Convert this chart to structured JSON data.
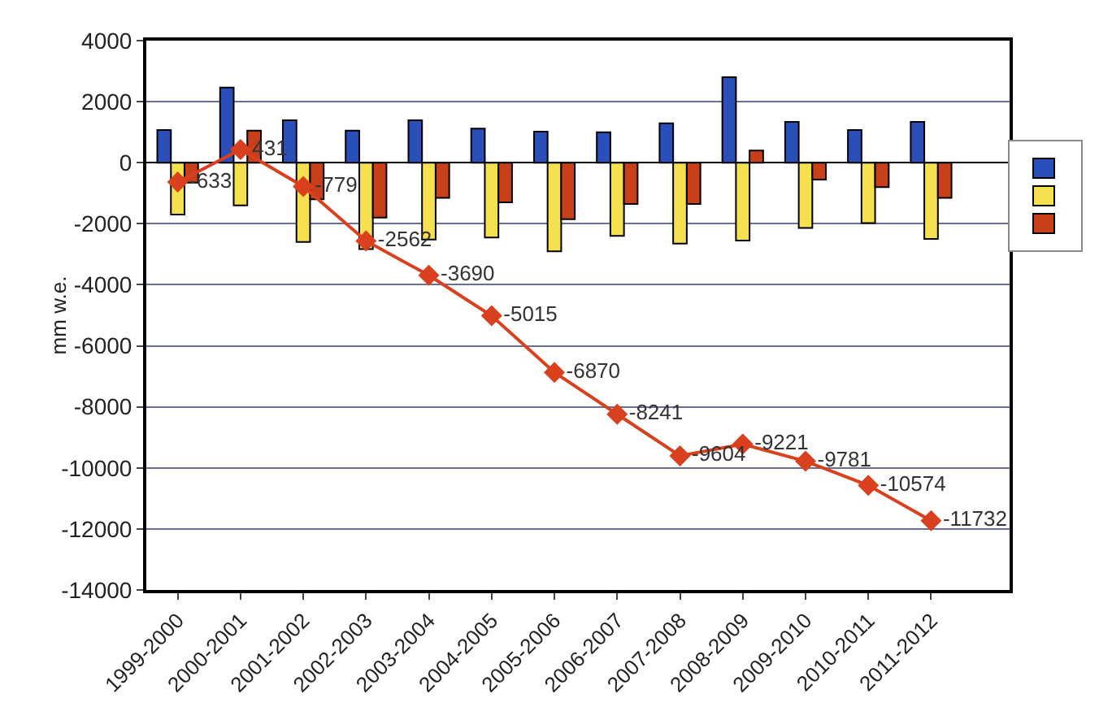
{
  "chart_data": {
    "type": "bar",
    "ylabel": "mm w.e.",
    "categories": [
      "1999-2000",
      "2000-2001",
      "2001-2002",
      "2002-2003",
      "2003-2004",
      "2004-2005",
      "2005-2006",
      "2006-2007",
      "2007-2008",
      "2008-2009",
      "2009-2010",
      "2010-2011",
      "2011-2012"
    ],
    "series": [
      {
        "color": "#2a4fb8",
        "values": [
          1070,
          2460,
          1390,
          1050,
          1390,
          1120,
          1020,
          1000,
          1290,
          2800,
          1340,
          1070,
          1340
        ]
      },
      {
        "color": "#f5e050",
        "values": [
          -1700,
          -1400,
          -2600,
          -2830,
          -2520,
          -2450,
          -2900,
          -2400,
          -2650,
          -2550,
          -2140,
          -1980,
          -2500
        ]
      },
      {
        "color": "#c8401a",
        "values": [
          -650,
          1050,
          -1200,
          -1800,
          -1150,
          -1300,
          -1850,
          -1350,
          -1350,
          400,
          -550,
          -800,
          -1150
        ]
      },
      {
        "type": "line",
        "color": "#d8401e",
        "marker": "diamond",
        "values": [
          -633,
          431,
          -779,
          -2562,
          -3690,
          -5015,
          -6870,
          -8241,
          -9604,
          -9221,
          -9781,
          -10574,
          -11732
        ],
        "value_labels": [
          "-633",
          "431",
          "-779",
          "-2562",
          "-3690",
          "-5015",
          "-6870",
          "-8241",
          "-9604",
          "-9221",
          "-9781",
          "-10574",
          "-11732"
        ]
      }
    ],
    "ylim": [
      -14000,
      4000
    ],
    "yticks": [
      -14000,
      -12000,
      -10000,
      -8000,
      -6000,
      -4000,
      -2000,
      0,
      2000,
      4000
    ],
    "grid": "y"
  }
}
